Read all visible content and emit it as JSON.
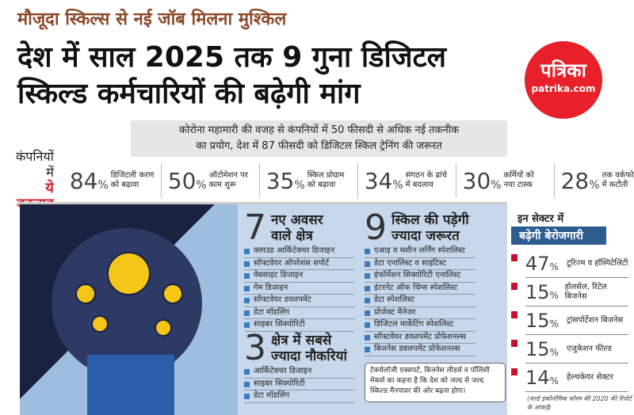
{
  "kicker": "मौजूदा स्किल्स से नई जॉब मिलना मुश्किल",
  "headline": {
    "line1": "देश में साल 2025 तक 9 गुना डिजिटल",
    "line2": "स्किल्ड कर्मचारियों की बढ़ेगी मांग"
  },
  "logo": {
    "name": "पत्रिका",
    "site": "patrika.com",
    "color": "#e8202a"
  },
  "summary": {
    "line1": "कोरोना महामारी की वजह से कंपनियों में 50 फीसदी से अधिक नई तकनीक",
    "line2": "का प्रयोग, देश में 87 फीसदी को डिजिटल स्किल ट्रेनिंग की जरूरत"
  },
  "changes": {
    "label1": "कंपनियों में",
    "label2": "ये बदलाव",
    "items": [
      {
        "value": "84",
        "text": "डिजिटली करण को बढ़ावा"
      },
      {
        "value": "50",
        "text": "ऑटोमेशन पर काम शुरू"
      },
      {
        "value": "35",
        "text": "स्किल प्रोग्राम को बढ़ावा"
      },
      {
        "value": "34",
        "text": "संगठन के ढांचे में बदलाव"
      },
      {
        "value": "30",
        "text": "कर्मियों को नया टास्क"
      },
      {
        "value": "28",
        "text": "तक वर्कफोर्स में कटौती"
      }
    ]
  },
  "opportunities": {
    "number": "7",
    "title1": "नए अवसर",
    "title2": "वाले क्षेत्र",
    "items": [
      "क्लाउड आर्किटेक्चर डिजाइन",
      "सॉफ्टवेयर ऑपरेशंस सपोर्ट",
      "वेबसाइट डिजाइन",
      "गेम डिजाइन",
      "सॉफ्टवेयर डवलपमेंट",
      "डेटा मॉडलिंग",
      "साइबर सिक्योरिटी"
    ]
  },
  "top_jobs": {
    "number": "3",
    "title1": "क्षेत्र में सबसे",
    "title2": "ज्यादा नौकरियां",
    "items": [
      "आर्किटेक्चर डिजाइन",
      "साइबर सिक्योरिटी",
      "डेटा मॉडलिंग"
    ]
  },
  "skills": {
    "number": "9",
    "title1": "स्किल की पड़ेगी",
    "title2": "ज्यादा जरूरत",
    "items": [
      "एआइ व मशीन लर्निंग स्पेशलिस्ट",
      "डेटा एनालिस्ट व साइंटिस्ट",
      "इंफॉर्मेशन सिक्योरिटी एनालिस्ट",
      "इंटरनेट ऑफ थिंग्स स्पेशलिस्ट",
      "डेटा स्पेशलिस्ट",
      "प्रोजेक्ट मैनेजर",
      "डिजिटल मार्केटिंग स्पेशलिस्ट",
      "सॉफ्टवेयर डवलपमेंट प्रोफेशनल्स",
      "बिजनेस डवलपमेंट प्रोफेशनल्स"
    ]
  },
  "quote": "टेक्नोलॉजी एक्सपर्ट, बिजनेस लीडर्स व पॉलिसी मेकर्स का कहना है कि देश को जल्द से जल्द स्किल्ड मैनपावर की ओर बढ़ना होगा।",
  "unemployment": {
    "title1": "इन सेक्टर में",
    "title2": "बढ़ेगी बेरोजगारी",
    "items": [
      {
        "value": "47",
        "text": "टूरिज्म व हॉस्पिटेलिटी"
      },
      {
        "value": "15",
        "text": "होलसेल, रिटेल बिजनेस"
      },
      {
        "value": "15",
        "text": "ट्रांसपोर्टेशन बिजनेस"
      },
      {
        "value": "15",
        "text": "एजुकेशन फील्ड"
      },
      {
        "value": "14",
        "text": "हेल्थकेयर सेक्टर"
      }
    ],
    "source": "(वर्ल्ड इकोनॉमिक फोरम की 2020 की रिपोर्ट के आंकड़े)"
  },
  "percent_sign": "%"
}
